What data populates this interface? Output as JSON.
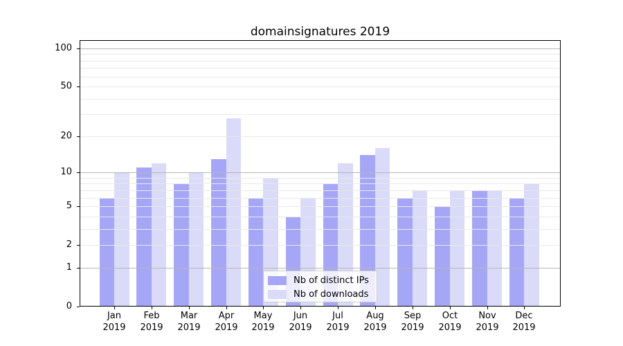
{
  "chart_data": {
    "type": "bar",
    "title": "domainsignatures 2019",
    "categories": [
      "Jan",
      "Feb",
      "Mar",
      "Apr",
      "May",
      "Jun",
      "Jul",
      "Aug",
      "Sep",
      "Oct",
      "Nov",
      "Dec"
    ],
    "x_tick_year": "2019",
    "series": [
      {
        "name": "Nb of distinct IPs",
        "color": "#a6a6f7",
        "values": [
          6,
          11,
          8,
          13,
          6,
          4,
          8,
          14,
          6,
          5,
          7,
          6
        ]
      },
      {
        "name": "Nb of downloads",
        "color": "#dadaf9",
        "values": [
          10,
          12,
          10,
          28,
          9,
          6,
          12,
          16,
          7,
          7,
          7,
          8
        ]
      }
    ],
    "yscale": "log1p",
    "ylim": [
      0,
      116
    ],
    "y_tick_labels": [
      "100",
      "50",
      "20",
      "10",
      "5",
      "2",
      "1",
      "0"
    ],
    "grid": {
      "on": true,
      "major_values": [
        1,
        10,
        100
      ],
      "minor_values": [
        2,
        3,
        4,
        5,
        6,
        7,
        8,
        9,
        20,
        30,
        40,
        50,
        60,
        70,
        80,
        90
      ],
      "major_color": "#b6b6b6",
      "minor_color": "#e9e9e9"
    },
    "legend": {
      "entries": [
        "Nb of distinct IPs",
        "Nb of downloads"
      ],
      "position": "lower center"
    }
  }
}
